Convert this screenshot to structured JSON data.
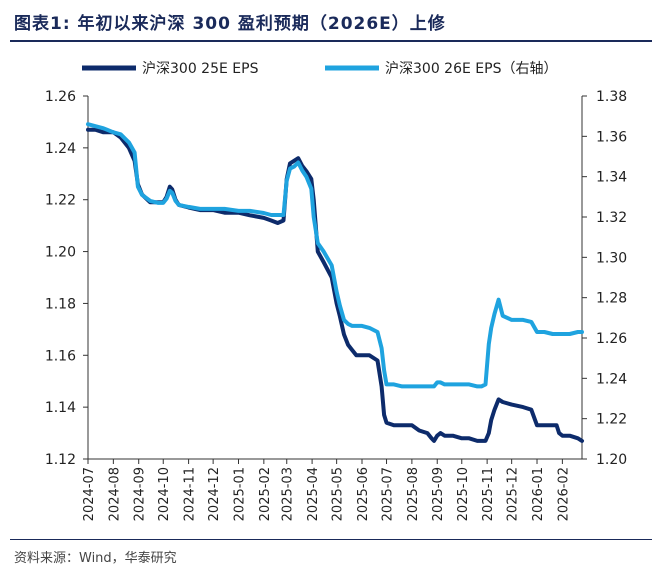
{
  "title": "图表1:   年初以来沪深 300 盈利预期（2026E）上修",
  "source": "资料来源：Wind，华泰研究",
  "colors": {
    "series1": "#0d2b6b",
    "series2": "#1fa3df",
    "title": "#1a2a5a"
  },
  "chart_data": {
    "type": "line",
    "title": "",
    "xlabel": "",
    "ylabel": "",
    "y2label": "",
    "grid": false,
    "legend_position": "top",
    "x_ticks": [
      "2024-07",
      "2024-08",
      "2024-09",
      "2024-10",
      "2024-11",
      "2024-12",
      "2025-01",
      "2025-02",
      "2025-03",
      "2025-04",
      "2025-05",
      "2025-06",
      "2025-07",
      "2025-08",
      "2025-09",
      "2025-10",
      "2025-11",
      "2025-12",
      "2026-01",
      "2026-02"
    ],
    "x_range": [
      "2024-07-01",
      "2026-02-25"
    ],
    "ylim": [
      1.12,
      1.26
    ],
    "y_ticks": [
      1.12,
      1.14,
      1.16,
      1.18,
      1.2,
      1.22,
      1.24,
      1.26
    ],
    "y2lim": [
      1.2,
      1.38
    ],
    "y2_ticks": [
      1.2,
      1.22,
      1.24,
      1.26,
      1.28,
      1.3,
      1.32,
      1.34,
      1.36,
      1.38
    ],
    "series": [
      {
        "name": "沪深300 25E EPS",
        "axis": "left",
        "x": [
          "2024-07-01",
          "2024-07-10",
          "2024-07-20",
          "2024-08-01",
          "2024-08-10",
          "2024-08-20",
          "2024-08-27",
          "2024-08-31",
          "2024-09-05",
          "2024-09-15",
          "2024-09-25",
          "2024-10-01",
          "2024-10-05",
          "2024-10-09",
          "2024-10-12",
          "2024-10-16",
          "2024-10-20",
          "2024-11-01",
          "2024-11-15",
          "2024-12-01",
          "2024-12-15",
          "2025-01-01",
          "2025-01-15",
          "2025-02-01",
          "2025-02-10",
          "2025-02-18",
          "2025-02-25",
          "2025-03-01",
          "2025-03-05",
          "2025-03-10",
          "2025-03-15",
          "2025-03-20",
          "2025-03-25",
          "2025-03-31",
          "2025-04-03",
          "2025-04-08",
          "2025-04-15",
          "2025-04-25",
          "2025-05-01",
          "2025-05-05",
          "2025-05-10",
          "2025-05-15",
          "2025-05-20",
          "2025-05-25",
          "2025-06-01",
          "2025-06-10",
          "2025-06-20",
          "2025-06-25",
          "2025-06-28",
          "2025-07-01",
          "2025-07-10",
          "2025-07-20",
          "2025-08-01",
          "2025-08-10",
          "2025-08-20",
          "2025-08-25",
          "2025-08-28",
          "2025-09-01",
          "2025-09-05",
          "2025-09-10",
          "2025-09-20",
          "2025-10-01",
          "2025-10-10",
          "2025-10-20",
          "2025-10-25",
          "2025-10-30",
          "2025-11-03",
          "2025-11-06",
          "2025-11-10",
          "2025-11-15",
          "2025-11-20",
          "2025-12-01",
          "2025-12-15",
          "2025-12-25",
          "2026-01-01",
          "2026-01-10",
          "2026-01-20",
          "2026-01-25",
          "2026-01-28",
          "2026-02-01",
          "2026-02-10",
          "2026-02-20",
          "2026-02-25"
        ],
        "values": [
          1.247,
          1.247,
          1.246,
          1.246,
          1.244,
          1.24,
          1.235,
          1.226,
          1.222,
          1.219,
          1.219,
          1.219,
          1.221,
          1.225,
          1.224,
          1.22,
          1.218,
          1.217,
          1.216,
          1.216,
          1.215,
          1.215,
          1.214,
          1.213,
          1.212,
          1.211,
          1.212,
          1.228,
          1.234,
          1.235,
          1.236,
          1.233,
          1.231,
          1.228,
          1.22,
          1.2,
          1.196,
          1.19,
          1.18,
          1.175,
          1.168,
          1.164,
          1.162,
          1.16,
          1.16,
          1.16,
          1.158,
          1.148,
          1.137,
          1.134,
          1.133,
          1.133,
          1.133,
          1.131,
          1.13,
          1.128,
          1.127,
          1.129,
          1.13,
          1.129,
          1.129,
          1.128,
          1.128,
          1.127,
          1.127,
          1.127,
          1.13,
          1.135,
          1.139,
          1.143,
          1.142,
          1.141,
          1.14,
          1.139,
          1.133,
          1.133,
          1.133,
          1.133,
          1.13,
          1.129,
          1.129,
          1.128,
          1.127
        ]
      },
      {
        "name": "沪深300 26E EPS（右轴）",
        "axis": "right",
        "x": [
          "2024-07-01",
          "2024-07-10",
          "2024-07-20",
          "2024-08-01",
          "2024-08-10",
          "2024-08-20",
          "2024-08-27",
          "2024-08-31",
          "2024-09-05",
          "2024-09-15",
          "2024-09-25",
          "2024-10-01",
          "2024-10-05",
          "2024-10-09",
          "2024-10-12",
          "2024-10-16",
          "2024-10-20",
          "2024-11-01",
          "2024-11-15",
          "2024-12-01",
          "2024-12-15",
          "2025-01-01",
          "2025-01-15",
          "2025-02-01",
          "2025-02-10",
          "2025-02-18",
          "2025-02-25",
          "2025-03-01",
          "2025-03-05",
          "2025-03-10",
          "2025-03-15",
          "2025-03-20",
          "2025-03-25",
          "2025-03-31",
          "2025-04-03",
          "2025-04-08",
          "2025-04-15",
          "2025-04-25",
          "2025-05-01",
          "2025-05-05",
          "2025-05-10",
          "2025-05-15",
          "2025-05-20",
          "2025-05-25",
          "2025-06-01",
          "2025-06-10",
          "2025-06-20",
          "2025-06-25",
          "2025-06-28",
          "2025-07-01",
          "2025-07-10",
          "2025-07-20",
          "2025-08-01",
          "2025-08-10",
          "2025-08-20",
          "2025-08-25",
          "2025-08-28",
          "2025-09-01",
          "2025-09-05",
          "2025-09-10",
          "2025-09-20",
          "2025-10-01",
          "2025-10-10",
          "2025-10-20",
          "2025-10-25",
          "2025-10-30",
          "2025-11-03",
          "2025-11-06",
          "2025-11-10",
          "2025-11-15",
          "2025-11-20",
          "2025-12-01",
          "2025-12-15",
          "2025-12-25",
          "2026-01-01",
          "2026-01-10",
          "2026-01-20",
          "2026-01-25",
          "2026-01-28",
          "2026-02-01",
          "2026-02-10",
          "2026-02-20",
          "2026-02-25"
        ],
        "values": [
          1.366,
          1.365,
          1.364,
          1.362,
          1.361,
          1.357,
          1.352,
          1.335,
          1.331,
          1.328,
          1.327,
          1.327,
          1.329,
          1.333,
          1.332,
          1.328,
          1.326,
          1.325,
          1.324,
          1.324,
          1.324,
          1.323,
          1.323,
          1.322,
          1.321,
          1.321,
          1.321,
          1.338,
          1.344,
          1.345,
          1.347,
          1.343,
          1.34,
          1.334,
          1.32,
          1.307,
          1.303,
          1.296,
          1.283,
          1.276,
          1.269,
          1.267,
          1.266,
          1.266,
          1.266,
          1.265,
          1.263,
          1.255,
          1.244,
          1.237,
          1.237,
          1.236,
          1.236,
          1.236,
          1.236,
          1.236,
          1.236,
          1.238,
          1.238,
          1.237,
          1.237,
          1.237,
          1.237,
          1.236,
          1.236,
          1.237,
          1.257,
          1.265,
          1.272,
          1.279,
          1.271,
          1.269,
          1.269,
          1.268,
          1.263,
          1.263,
          1.262,
          1.262,
          1.262,
          1.262,
          1.262,
          1.263,
          1.263
        ]
      }
    ]
  }
}
